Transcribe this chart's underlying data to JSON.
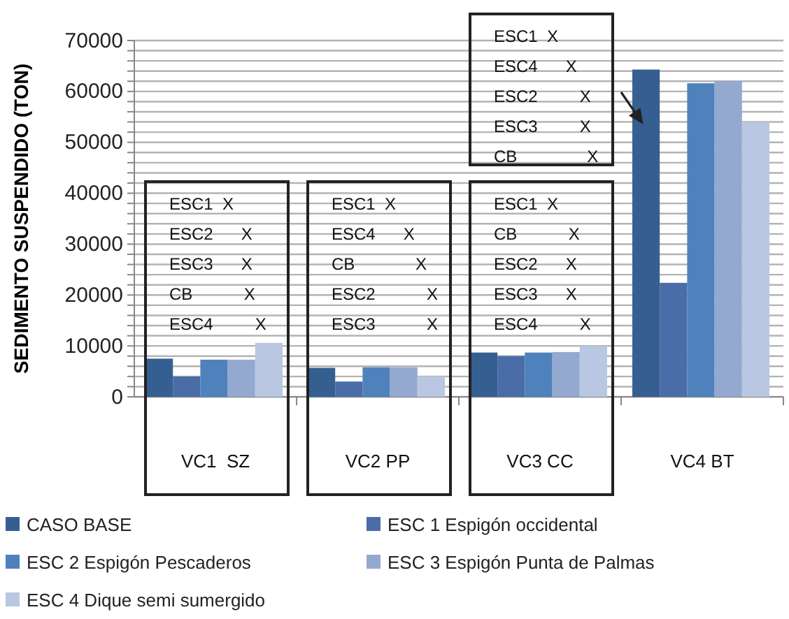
{
  "chart_data": {
    "type": "bar",
    "ylabel": "SEDIMENTO SUSPENDIDO (TON)",
    "categories": [
      "VC1  SZ",
      "VC2 PP",
      "VC3 CC",
      "VC4 BT"
    ],
    "series": [
      {
        "name": "CASO BASE",
        "color": "#365f91",
        "values": [
          7500,
          5700,
          8700,
          64300
        ]
      },
      {
        "name": "ESC 1 Espigón occidental",
        "color": "#4a6da7",
        "values": [
          4000,
          3000,
          8000,
          22400
        ]
      },
      {
        "name": "ESC 2 Espigón Pescaderos",
        "color": "#4f81bd",
        "values": [
          7300,
          5800,
          8700,
          61600
        ]
      },
      {
        "name": "ESC 3 Espigón Punta de Palmas",
        "color": "#93a9cf",
        "values": [
          7300,
          5800,
          8800,
          62000
        ]
      },
      {
        "name": "ESC 4 Dique semi sumergido",
        "color": "#b9c7e3",
        "values": [
          10600,
          4000,
          10000,
          54000
        ]
      }
    ],
    "ylim": [
      0,
      70000
    ],
    "yticks": [
      0,
      {
        "value": 2000,
        "label": null
      },
      {
        "value": 4000,
        "label": null
      },
      {
        "value": 6000,
        "label": null
      },
      {
        "value": 8000,
        "label": null
      },
      10000,
      {
        "value": 12000,
        "label": null
      },
      {
        "value": 14000,
        "label": null
      },
      {
        "value": 16000,
        "label": null
      },
      {
        "value": 18000,
        "label": null
      },
      20000,
      {
        "value": 22000,
        "label": null
      },
      {
        "value": 24000,
        "label": null
      },
      {
        "value": 26000,
        "label": null
      },
      {
        "value": 28000,
        "label": null
      },
      30000,
      {
        "value": 32000,
        "label": null
      },
      {
        "value": 34000,
        "label": null
      },
      {
        "value": 36000,
        "label": null
      },
      {
        "value": 38000,
        "label": null
      },
      40000,
      {
        "value": 42000,
        "label": null
      },
      {
        "value": 44000,
        "label": null
      },
      {
        "value": 46000,
        "label": null
      },
      {
        "value": 48000,
        "label": null
      },
      50000,
      {
        "value": 52000,
        "label": null
      },
      {
        "value": 54000,
        "label": null
      },
      {
        "value": 56000,
        "label": null
      },
      {
        "value": 58000,
        "label": null
      },
      60000,
      {
        "value": 62000,
        "label": null
      },
      {
        "value": 64000,
        "label": null
      },
      {
        "value": 66000,
        "label": null
      },
      {
        "value": 68000,
        "label": null
      },
      70000
    ],
    "grid": "y",
    "legend": "bottom",
    "annotations": [
      "ESC1  X\nESC2      X\nESC3      X\nCB           X\nESC4         X",
      "ESC1  X\nESC4      X\nCB             X\nESC2           X\nESC3           X",
      "ESC1  X\nCB           X\nESC2      X\nESC3      X\nESC4         X",
      "ESC1  X\nESC4      X\nESC2         X\nESC3         X\nCB               X"
    ]
  }
}
